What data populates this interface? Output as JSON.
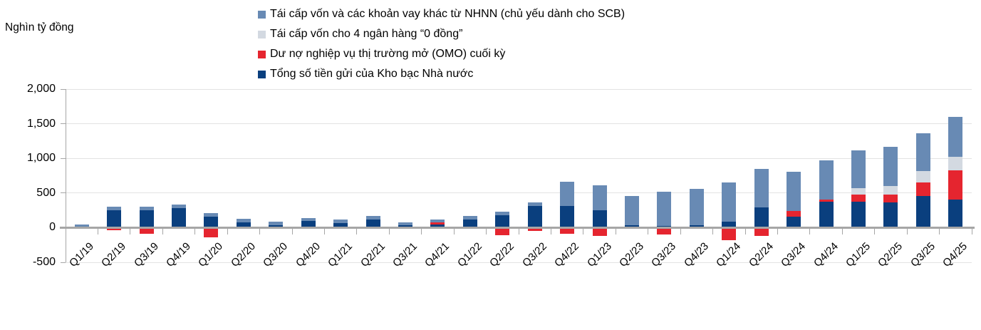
{
  "unit_label": "Nghìn tỷ đồng",
  "colors": {
    "refi_scb": "#688ab4",
    "refi_zero_banks": "#d3d9e1",
    "omo": "#e5252f",
    "treasury": "#0a3f7e",
    "gridline": "#e3e3e3",
    "axis": "#a6a6a6",
    "text": "#000000"
  },
  "legend": {
    "items": [
      {
        "label": "Tái cấp vốn và các khoản vay khác từ NHNN (chủ yếu dành cho SCB)",
        "color_key": "refi_scb"
      },
      {
        "label": "Tái cấp vốn cho 4 ngân hàng “0 đồng”",
        "color_key": "refi_zero_banks"
      },
      {
        "label": "Dư nợ nghiệp vụ thị trường mở (OMO) cuối kỳ",
        "color_key": "omo"
      },
      {
        "label": "Tổng số tiền gửi của Kho bạc Nhà nước",
        "color_key": "treasury"
      }
    ]
  },
  "chart_data": {
    "type": "bar",
    "subtype": "stacked",
    "title": "",
    "unit": "Nghìn tỷ đồng",
    "legend_position": "top",
    "grid": true,
    "categories": [
      "Q1/19",
      "Q2/19",
      "Q3/19",
      "Q4/19",
      "Q1/20",
      "Q2/20",
      "Q3/20",
      "Q4/20",
      "Q1/21",
      "Q2/21",
      "Q3/21",
      "Q4/21",
      "Q1/22",
      "Q2/22",
      "Q3/22",
      "Q4/22",
      "Q1/23",
      "Q2/23",
      "Q3/23",
      "Q4/23",
      "Q1/24",
      "Q2/24",
      "Q3/24",
      "Q4/24",
      "Q1/25",
      "Q2/25",
      "Q3/25",
      "Q4/25"
    ],
    "y_axis": {
      "min": -500,
      "max": 2000,
      "tick_step": 500,
      "ticks": [
        -500,
        0,
        500,
        1000,
        1500,
        2000
      ]
    },
    "stack_order_bottom_to_top": [
      "treasury",
      "omo",
      "refi_zero_banks",
      "refi_scb"
    ],
    "series": [
      {
        "name": "Tổng số tiền gửi của Kho bạc Nhà nước",
        "color_key": "treasury",
        "values": [
          0,
          250,
          250,
          285,
          160,
          80,
          40,
          100,
          70,
          120,
          35,
          50,
          115,
          180,
          310,
          315,
          250,
          40,
          25,
          40,
          90,
          290,
          160,
          370,
          370,
          365,
          455,
          410
        ]
      },
      {
        "name": "Dư nợ nghiệp vụ thị trường mở (OMO) cuối kỳ",
        "color_key": "omo",
        "values": [
          -15,
          -40,
          -90,
          0,
          -135,
          0,
          0,
          0,
          0,
          0,
          0,
          25,
          -15,
          -110,
          -45,
          -90,
          -120,
          0,
          -100,
          0,
          -180,
          -115,
          85,
          40,
          110,
          115,
          200,
          415
        ]
      },
      {
        "name": "Tái cấp vốn cho 4 ngân hàng “0 đồng”",
        "color_key": "refi_zero_banks",
        "values": [
          0,
          0,
          0,
          0,
          0,
          0,
          0,
          0,
          0,
          0,
          0,
          0,
          0,
          0,
          0,
          0,
          0,
          0,
          0,
          0,
          0,
          0,
          0,
          0,
          90,
          120,
          160,
          195
        ]
      },
      {
        "name": "Tái cấp vốn và các khoản vay khác từ NHNN (chủ yếu dành cho SCB)",
        "color_key": "refi_scb",
        "values": [
          50,
          55,
          50,
          50,
          55,
          50,
          50,
          40,
          45,
          45,
          40,
          40,
          50,
          50,
          50,
          345,
          360,
          420,
          495,
          515,
          560,
          560,
          560,
          565,
          550,
          565,
          550,
          580
        ]
      }
    ]
  }
}
